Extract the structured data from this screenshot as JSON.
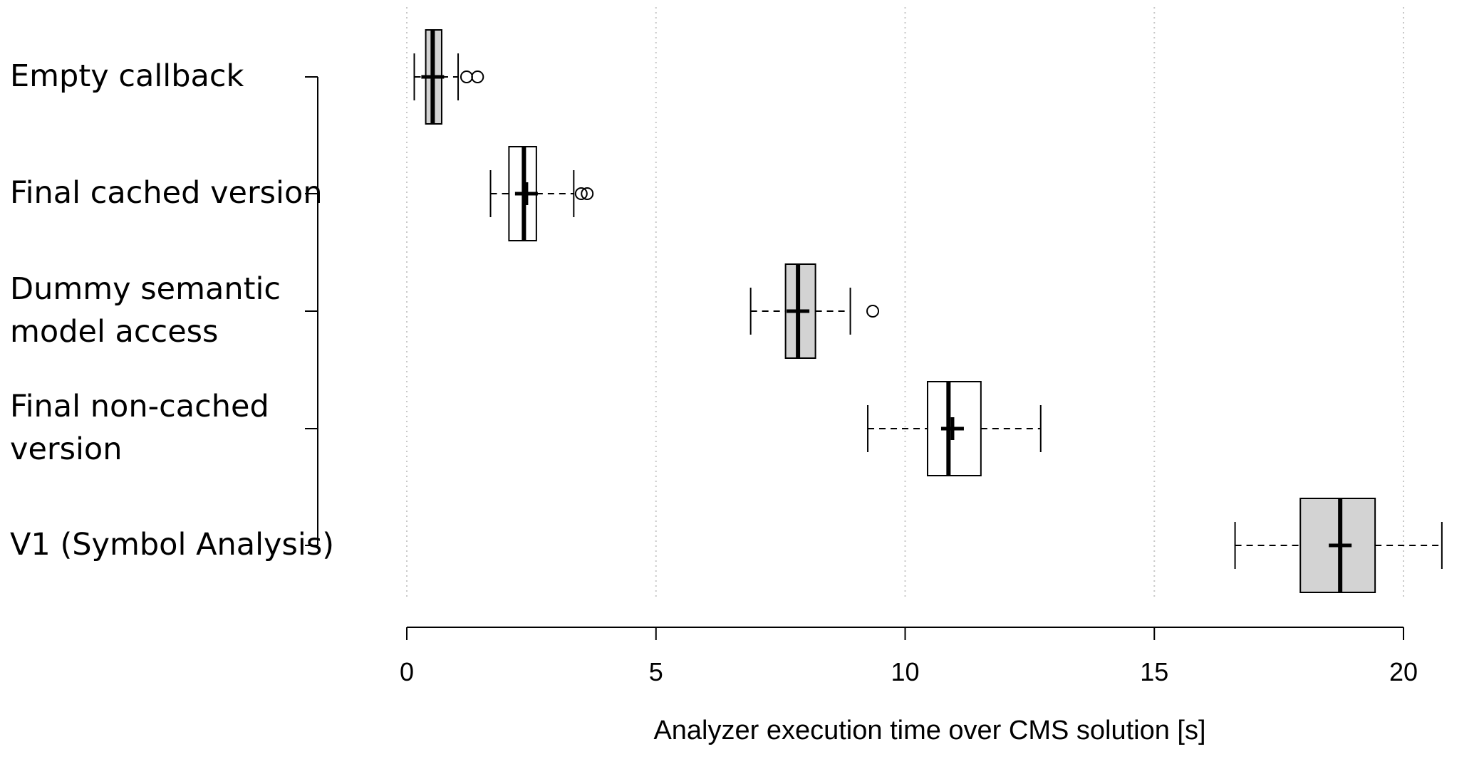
{
  "chart_data": {
    "type": "boxplot",
    "orientation": "horizontal",
    "xlabel": "Analyzer execution time over CMS solution [s]",
    "xlim": [
      0,
      20
    ],
    "x_ticks": [
      0,
      5,
      10,
      15,
      20
    ],
    "x_tick_labels": [
      "0",
      "5",
      "10",
      "15",
      "20"
    ],
    "grid": "vertical dotted lines at x ticks",
    "categories": [
      {
        "label_lines": [
          "Empty callback"
        ],
        "fill": "#d3d3d3",
        "whisker_low": 0.15,
        "q1": 0.38,
        "median": 0.52,
        "q3": 0.7,
        "whisker_high": 1.03,
        "mean": 0.52,
        "outliers": [
          1.2,
          1.42
        ]
      },
      {
        "label_lines": [
          "Final cached version"
        ],
        "fill": "#ffffff",
        "whisker_low": 1.68,
        "q1": 2.05,
        "median": 2.35,
        "q3": 2.6,
        "whisker_high": 3.35,
        "mean": 2.4,
        "outliers": [
          3.5,
          3.62
        ]
      },
      {
        "label_lines": [
          "Dummy semantic",
          "model access"
        ],
        "fill": "#d3d3d3",
        "whisker_low": 6.9,
        "q1": 7.6,
        "median": 7.85,
        "q3": 8.2,
        "whisker_high": 8.9,
        "mean": 7.85,
        "outliers": [
          9.35
        ]
      },
      {
        "label_lines": [
          "Final non-cached",
          "version"
        ],
        "fill": "#ffffff",
        "whisker_low": 9.25,
        "q1": 10.45,
        "median": 10.87,
        "q3": 11.52,
        "whisker_high": 12.72,
        "mean": 10.95,
        "outliers": []
      },
      {
        "label_lines": [
          "V1 (Symbol Analysis)"
        ],
        "fill": "#d3d3d3",
        "whisker_low": 16.62,
        "q1": 17.93,
        "median": 18.73,
        "q3": 19.43,
        "whisker_high": 20.77,
        "mean": 18.73,
        "outliers": []
      }
    ]
  }
}
